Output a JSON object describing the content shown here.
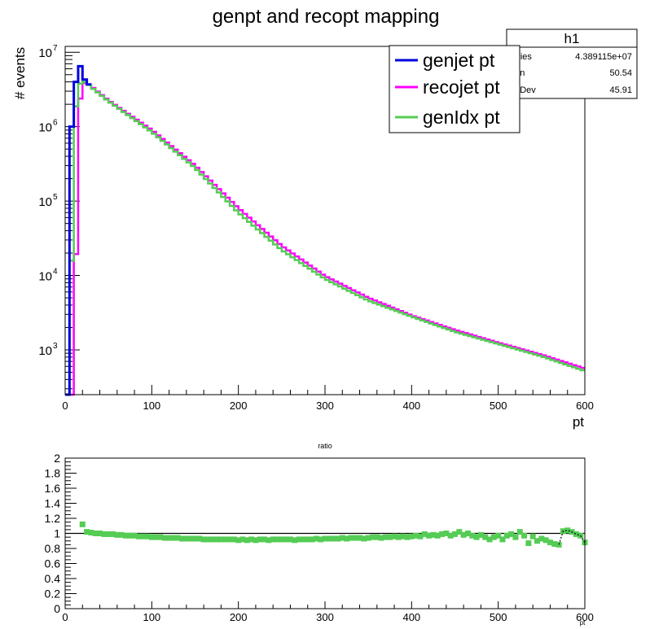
{
  "colors": {
    "genjet": "#0000dd",
    "recojet": "#ff00ff",
    "genIdx": "#55cc55",
    "axis": "#000000",
    "ratio_markers": "#55cc55",
    "ratio_line": "#000000",
    "ratio_overlay": "#000000"
  },
  "chart_data": [
    {
      "type": "line",
      "subtype": "step-histogram",
      "title": "genpt and recopt mapping",
      "xlabel": "pt",
      "ylabel": "# events",
      "xlim": [
        0,
        600
      ],
      "ylim": [
        250,
        12000000
      ],
      "yscale": "log",
      "x_ticks": [
        "0",
        "100",
        "200",
        "300",
        "400",
        "500",
        "600"
      ],
      "y_ticks": [
        {
          "base": "10",
          "exp": "3",
          "value": 1000
        },
        {
          "base": "10",
          "exp": "4",
          "value": 10000
        },
        {
          "base": "10",
          "exp": "5",
          "value": 100000
        },
        {
          "base": "10",
          "exp": "6",
          "value": 1000000
        },
        {
          "base": "10",
          "exp": "7",
          "value": 10000000
        }
      ],
      "grid": false,
      "bin_width": 5,
      "legend": {
        "position": "top-right",
        "entries": [
          {
            "label": "genjet pt",
            "color": "#0000dd"
          },
          {
            "label": "recojet pt",
            "color": "#ff00ff"
          },
          {
            "label": "genIdx pt",
            "color": "#55cc55"
          }
        ]
      },
      "stats_box": {
        "title": "h1",
        "rows": [
          {
            "label": "ntries",
            "value": "4.389115e+07"
          },
          {
            "label": "ean",
            "value": "50.54"
          },
          {
            "label": "td Dev",
            "value": "45.91"
          }
        ]
      },
      "series": [
        {
          "name": "genjet pt",
          "color": "#0000dd",
          "bins": [
            [
              0,
              5,
              250
            ],
            [
              5,
              10,
              1000000
            ],
            [
              10,
              15,
              4000000
            ],
            [
              15,
              20,
              6500000
            ],
            [
              20,
              25,
              4300000
            ],
            [
              25,
              30,
              3700000
            ]
          ]
        },
        {
          "name": "recojet pt",
          "color": "#ff00ff",
          "key_points": [
            [
              0,
              250
            ],
            [
              10,
              250
            ],
            [
              15,
              1500000
            ],
            [
              20,
              3800000
            ],
            [
              25,
              3900000
            ],
            [
              30,
              3500000
            ],
            [
              50,
              2250000
            ],
            [
              100,
              900000
            ],
            [
              150,
              300000
            ],
            [
              200,
              80000
            ],
            [
              250,
              25000
            ],
            [
              300,
              9800
            ],
            [
              350,
              5000
            ],
            [
              400,
              2900
            ],
            [
              450,
              1850
            ],
            [
              500,
              1250
            ],
            [
              550,
              860
            ],
            [
              600,
              560
            ]
          ]
        },
        {
          "name": "genIdx pt",
          "color": "#55cc55",
          "key_points": [
            [
              0,
              250
            ],
            [
              5,
              250
            ],
            [
              10,
              1000000
            ],
            [
              15,
              3500000
            ],
            [
              20,
              4100000
            ],
            [
              25,
              3900000
            ],
            [
              30,
              3400000
            ],
            [
              50,
              2200000
            ],
            [
              100,
              850000
            ],
            [
              150,
              280000
            ],
            [
              200,
              70000
            ],
            [
              250,
              22000
            ],
            [
              300,
              9000
            ],
            [
              350,
              4600
            ],
            [
              400,
              2800
            ],
            [
              450,
              1750
            ],
            [
              500,
              1200
            ],
            [
              550,
              820
            ],
            [
              600,
              520
            ]
          ]
        }
      ]
    },
    {
      "type": "scatter",
      "title": "ratio",
      "xlabel": "pt",
      "ylabel": "",
      "xlim": [
        0,
        600
      ],
      "ylim": [
        0,
        2
      ],
      "x_ticks": [
        "0",
        "100",
        "200",
        "300",
        "400",
        "500",
        "600"
      ],
      "y_ticks": [
        "0",
        "0.2",
        "0.4",
        "0.6",
        "0.8",
        "1",
        "1.2",
        "1.4",
        "1.6",
        "1.8",
        "2"
      ],
      "grid": false,
      "reference_line": 1,
      "series": [
        {
          "color": "#55cc55",
          "points": [
            [
              20,
              1.12
            ],
            [
              25,
              1.02
            ],
            [
              30,
              1.01
            ],
            [
              35,
              1.0
            ],
            [
              40,
              1.0
            ],
            [
              45,
              0.99
            ],
            [
              50,
              0.99
            ],
            [
              55,
              0.99
            ],
            [
              60,
              0.98
            ],
            [
              65,
              0.98
            ],
            [
              70,
              0.97
            ],
            [
              75,
              0.97
            ],
            [
              80,
              0.97
            ],
            [
              85,
              0.96
            ],
            [
              90,
              0.96
            ],
            [
              95,
              0.96
            ],
            [
              100,
              0.95
            ],
            [
              105,
              0.95
            ],
            [
              110,
              0.95
            ],
            [
              115,
              0.94
            ],
            [
              120,
              0.94
            ],
            [
              125,
              0.94
            ],
            [
              130,
              0.94
            ],
            [
              135,
              0.93
            ],
            [
              140,
              0.93
            ],
            [
              145,
              0.93
            ],
            [
              150,
              0.93
            ],
            [
              155,
              0.93
            ],
            [
              160,
              0.92
            ],
            [
              165,
              0.92
            ],
            [
              170,
              0.92
            ],
            [
              175,
              0.92
            ],
            [
              180,
              0.92
            ],
            [
              185,
              0.92
            ],
            [
              190,
              0.92
            ],
            [
              195,
              0.92
            ],
            [
              200,
              0.91
            ],
            [
              205,
              0.92
            ],
            [
              210,
              0.91
            ],
            [
              215,
              0.92
            ],
            [
              220,
              0.91
            ],
            [
              225,
              0.92
            ],
            [
              230,
              0.92
            ],
            [
              235,
              0.91
            ],
            [
              240,
              0.92
            ],
            [
              245,
              0.92
            ],
            [
              250,
              0.92
            ],
            [
              255,
              0.92
            ],
            [
              260,
              0.92
            ],
            [
              265,
              0.91
            ],
            [
              270,
              0.92
            ],
            [
              275,
              0.92
            ],
            [
              280,
              0.92
            ],
            [
              285,
              0.92
            ],
            [
              290,
              0.93
            ],
            [
              295,
              0.92
            ],
            [
              300,
              0.93
            ],
            [
              305,
              0.93
            ],
            [
              310,
              0.93
            ],
            [
              315,
              0.93
            ],
            [
              320,
              0.94
            ],
            [
              325,
              0.93
            ],
            [
              330,
              0.94
            ],
            [
              335,
              0.94
            ],
            [
              340,
              0.94
            ],
            [
              345,
              0.93
            ],
            [
              350,
              0.94
            ],
            [
              355,
              0.95
            ],
            [
              360,
              0.95
            ],
            [
              365,
              0.94
            ],
            [
              370,
              0.95
            ],
            [
              375,
              0.95
            ],
            [
              380,
              0.96
            ],
            [
              385,
              0.95
            ],
            [
              390,
              0.96
            ],
            [
              395,
              0.95
            ],
            [
              400,
              0.96
            ],
            [
              405,
              0.97
            ],
            [
              410,
              0.96
            ],
            [
              415,
              0.99
            ],
            [
              420,
              0.97
            ],
            [
              425,
              0.98
            ],
            [
              430,
              0.97
            ],
            [
              435,
              0.99
            ],
            [
              440,
              1.0
            ],
            [
              445,
              0.97
            ],
            [
              450,
              0.99
            ],
            [
              455,
              1.02
            ],
            [
              460,
              0.98
            ],
            [
              465,
              1.0
            ],
            [
              470,
              0.97
            ],
            [
              475,
              0.95
            ],
            [
              480,
              0.98
            ],
            [
              485,
              0.95
            ],
            [
              490,
              0.92
            ],
            [
              495,
              0.95
            ],
            [
              500,
              0.97
            ],
            [
              505,
              0.92
            ],
            [
              510,
              0.97
            ],
            [
              515,
              0.99
            ],
            [
              520,
              0.95
            ],
            [
              525,
              1.02
            ],
            [
              530,
              0.97
            ],
            [
              535,
              0.87
            ],
            [
              540,
              0.96
            ],
            [
              545,
              0.9
            ],
            [
              550,
              0.93
            ],
            [
              555,
              0.91
            ],
            [
              560,
              0.88
            ],
            [
              565,
              0.86
            ],
            [
              570,
              0.85
            ],
            [
              575,
              1.03
            ],
            [
              580,
              1.04
            ],
            [
              585,
              1.02
            ],
            [
              590,
              0.99
            ],
            [
              595,
              0.97
            ],
            [
              600,
              0.88
            ]
          ]
        }
      ]
    }
  ]
}
